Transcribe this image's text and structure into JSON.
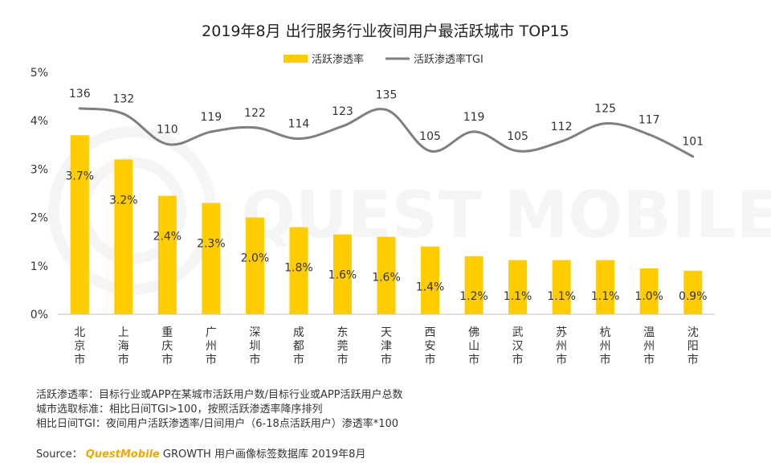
{
  "chart_data": {
    "type": "bar",
    "title": "2019年8月 出行服务行业夜间用户最活跃城市 TOP15",
    "categories": [
      "北京市",
      "上海市",
      "重庆市",
      "广州市",
      "深圳市",
      "成都市",
      "东莞市",
      "天津市",
      "西安市",
      "佛山市",
      "武汉市",
      "苏州市",
      "杭州市",
      "温州市",
      "沈阳市"
    ],
    "ylim": [
      0,
      5
    ],
    "yticks": [
      "0%",
      "1%",
      "2%",
      "3%",
      "4%",
      "5%"
    ],
    "series": [
      {
        "name": "活跃渗透率",
        "type": "bar",
        "color": "#FFCC00",
        "values": [
          3.7,
          3.2,
          2.45,
          2.3,
          2.0,
          1.8,
          1.65,
          1.6,
          1.4,
          1.2,
          1.12,
          1.12,
          1.12,
          0.95,
          0.9
        ],
        "labels": [
          "3.7%",
          "3.2%",
          "2.4%",
          "2.3%",
          "2.0%",
          "1.8%",
          "1.6%",
          "1.6%",
          "1.4%",
          "1.2%",
          "1.1%",
          "1.1%",
          "1.1%",
          "1.0%",
          "0.9%"
        ]
      },
      {
        "name": "活跃渗透率TGI",
        "type": "line",
        "color": "#7f7f7f",
        "values": [
          136,
          132,
          110,
          119,
          122,
          114,
          123,
          135,
          105,
          119,
          105,
          112,
          125,
          117,
          101
        ],
        "labels": [
          "136",
          "132",
          "110",
          "119",
          "122",
          "114",
          "123",
          "135",
          "105",
          "119",
          "105",
          "112",
          "125",
          "117",
          "101"
        ]
      }
    ],
    "watermark": "QUEST MOBILE"
  },
  "notes": [
    "活跃渗透率：目标行业或APP在某城市活跃用户数/目标行业或APP活跃用户总数",
    "城市选取标准：相比日间TGI>100，按照活跃渗透率降序排列",
    "相比日间TGI：夜间用户活跃渗透率/日间用户（6-18点活跃用户）渗透率*100"
  ],
  "source": {
    "label": "Source：",
    "brand": "QuestMobile",
    "rest": "GROWTH 用户画像标签数据库 2019年8月"
  }
}
